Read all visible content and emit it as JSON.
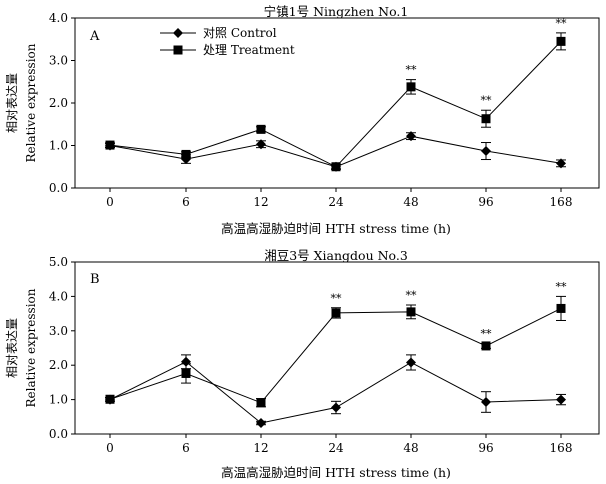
{
  "chart_data": [
    {
      "type": "line",
      "panel_label": "A",
      "title": "宁镇1号 Ningzhen No.1",
      "xlabel": "高温高湿胁迫时间 HTH stress time (h)",
      "ylabel_cn": "相对表达量",
      "ylabel_en": "Relative expression",
      "categories": [
        "0",
        "6",
        "12",
        "24",
        "48",
        "96",
        "168"
      ],
      "ylim": [
        0,
        4
      ],
      "yticks": [
        "0.0",
        "1.0",
        "2.0",
        "3.0",
        "4.0"
      ],
      "legend_position": "top-left",
      "series": [
        {
          "name": "对照 Control",
          "marker": "diamond",
          "values": [
            1.0,
            0.68,
            1.03,
            0.5,
            1.22,
            0.87,
            0.58
          ],
          "errors": [
            0.05,
            0.1,
            0.08,
            0.05,
            0.08,
            0.2,
            0.08
          ]
        },
        {
          "name": "处理 Treatment",
          "marker": "square",
          "values": [
            1.01,
            0.79,
            1.38,
            0.5,
            2.38,
            1.63,
            3.45
          ],
          "errors": [
            0.05,
            0.06,
            0.06,
            0.06,
            0.17,
            0.2,
            0.2
          ],
          "annotations": [
            "",
            "",
            "",
            "",
            "**",
            "**",
            "**"
          ]
        }
      ]
    },
    {
      "type": "line",
      "panel_label": "B",
      "title": "湘豆3号 Xiangdou No.3",
      "xlabel": "高温高湿胁迫时间 HTH stress time (h)",
      "ylabel_cn": "相对表达量",
      "ylabel_en": "Relative expression",
      "categories": [
        "0",
        "6",
        "12",
        "24",
        "48",
        "96",
        "168"
      ],
      "ylim": [
        0,
        5
      ],
      "yticks": [
        "0.0",
        "1.0",
        "2.0",
        "3.0",
        "4.0",
        "5.0"
      ],
      "series": [
        {
          "name": "对照 Control",
          "marker": "diamond",
          "values": [
            1.0,
            2.1,
            0.32,
            0.77,
            2.08,
            0.93,
            1.0
          ],
          "errors": [
            0.05,
            0.2,
            0.05,
            0.18,
            0.22,
            0.3,
            0.15
          ]
        },
        {
          "name": "处理 Treatment",
          "marker": "square",
          "values": [
            1.01,
            1.76,
            0.91,
            3.52,
            3.55,
            2.56,
            3.65
          ],
          "errors": [
            0.05,
            0.28,
            0.12,
            0.15,
            0.2,
            0.07,
            0.35
          ],
          "annotations": [
            "",
            "",
            "",
            "**",
            "**",
            "**",
            "**"
          ]
        }
      ]
    }
  ]
}
